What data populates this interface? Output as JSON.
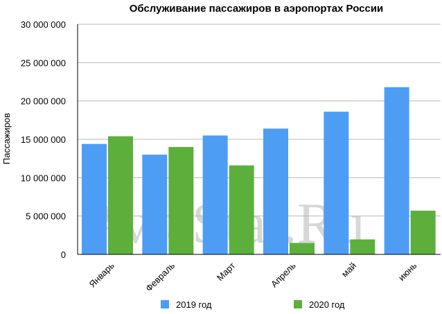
{
  "chart_data": {
    "type": "bar",
    "title": "Обслуживание пассажиров в аэропортах России",
    "ylabel": "Пассажиров",
    "xlabel": "",
    "ylim": [
      0,
      30000000
    ],
    "yticks": [
      {
        "value": 0,
        "label": "0"
      },
      {
        "value": 5000000,
        "label": "5 000 000"
      },
      {
        "value": 10000000,
        "label": "10 000 000"
      },
      {
        "value": 15000000,
        "label": "15 000 000"
      },
      {
        "value": 20000000,
        "label": "20 000 000"
      },
      {
        "value": 25000000,
        "label": "25 000 000"
      },
      {
        "value": 30000000,
        "label": "30 000 000"
      }
    ],
    "categories": [
      "Январь",
      "Февраль",
      "Март",
      "Апрель",
      "май",
      "июнь"
    ],
    "series": [
      {
        "name": "2019 год",
        "color": "#4d9df5",
        "values": [
          14400000,
          13000000,
          15500000,
          16400000,
          18600000,
          21800000
        ]
      },
      {
        "name": "2020 год",
        "color": "#5daf3c",
        "values": [
          15400000,
          14000000,
          11600000,
          1500000,
          1950000,
          5700000
        ]
      }
    ],
    "grid": true,
    "legend": "bottom",
    "watermark": "AviaStat.Ru"
  }
}
